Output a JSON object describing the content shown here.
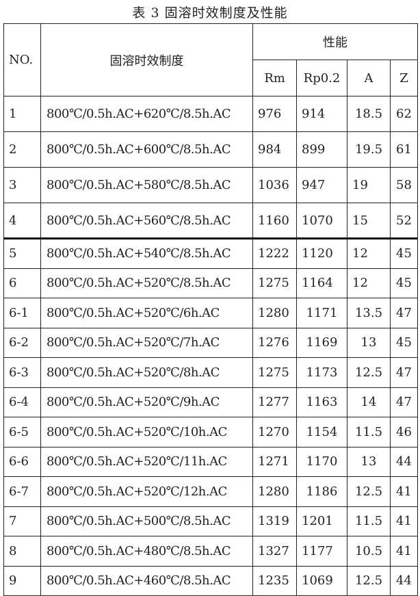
{
  "title": "表 3 固溶时效制度及性能",
  "headers": {
    "no": "NO.",
    "regime": "固溶时效制度",
    "properties": "性能",
    "rm": "Rm",
    "rp": "Rp0.2",
    "a": "A",
    "z": "Z"
  },
  "rows": [
    [
      "1",
      "800℃/0.5h.AC+620℃/8.5h.AC",
      "976",
      "914",
      "18.5",
      "62"
    ],
    [
      "2",
      "800℃/0.5h.AC+600℃/8.5h.AC",
      "984",
      "899",
      "19.5",
      "61"
    ],
    [
      "3",
      "800℃/0.5h.AC+580℃/8.5h.AC",
      "1036",
      "947",
      "19",
      "58"
    ],
    [
      "4",
      "800℃/0.5h.AC+560℃/8.5h.AC",
      "1160",
      "1070",
      "15",
      "52"
    ],
    [
      "5",
      "800℃/0.5h.AC+540℃/8.5h.AC",
      "1222",
      "1120",
      "12",
      "45"
    ],
    [
      "6",
      "800℃/0.5h.AC+520℃/8.5h.AC",
      "1275",
      "1164",
      "12",
      "45"
    ],
    [
      "6-1",
      "800℃/0.5h.AC+520℃/6h.AC",
      "1280",
      "1171",
      "13.5",
      "47"
    ],
    [
      "6-2",
      "800℃/0.5h.AC+520℃/7h.AC",
      "1276",
      "1169",
      "13",
      "45"
    ],
    [
      "6-3",
      "800℃/0.5h.AC+520℃/8h.AC",
      "1275",
      "1173",
      "12.5",
      "47"
    ],
    [
      "6-4",
      "800℃/0.5h.AC+520℃/9h.AC",
      "1277",
      "1163",
      "14",
      "47"
    ],
    [
      "6-5",
      "800℃/0.5h.AC+520℃/10h.AC",
      "1270",
      "1154",
      "11.5",
      "46"
    ],
    [
      "6-6",
      "800℃/0.5h.AC+520℃/11h.AC",
      "1271",
      "1170",
      "13",
      "44"
    ],
    [
      "6-7",
      "800℃/0.5h.AC+520℃/12h.AC",
      "1280",
      "1186",
      "12.5",
      "41"
    ],
    [
      "7",
      "800℃/0.5h.AC+500℃/8.5h.AC",
      "1319",
      "1201",
      "11.5",
      "41"
    ],
    [
      "8",
      "800℃/0.5h.AC+480℃/8.5h.AC",
      "1327",
      "1177",
      "10.5",
      "41"
    ],
    [
      "9",
      "800℃/0.5h.AC+460℃/8.5h.AC",
      "1235",
      "1069",
      "12.5",
      "44"
    ]
  ]
}
